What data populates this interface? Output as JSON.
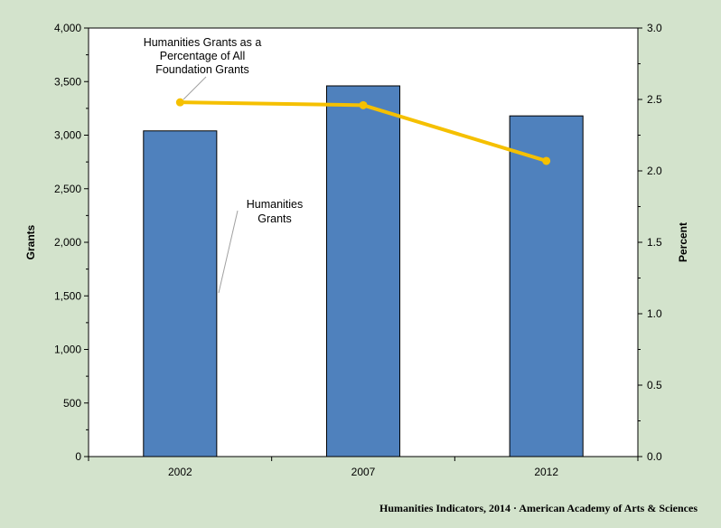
{
  "chart_data": {
    "type": "bar",
    "categories": [
      "2002",
      "2007",
      "2012"
    ],
    "series": [
      {
        "name": "Humanities Grants",
        "type": "bar",
        "axis": "left",
        "values": [
          3040,
          3460,
          3180
        ],
        "color": "#4f81bd"
      },
      {
        "name": "Humanities Grants as a Percentage of All Foundation Grants",
        "type": "line",
        "axis": "right",
        "values": [
          2.48,
          2.46,
          2.07
        ],
        "color": "#f5c000"
      }
    ],
    "ylabel": "Grants",
    "y2label": "Percent",
    "ylim": [
      0,
      4000
    ],
    "y2lim": [
      0,
      3.0
    ],
    "yticks": [
      "0",
      "500",
      "1,000",
      "1,500",
      "2,000",
      "2,500",
      "3,000",
      "3,500",
      "4,000"
    ],
    "y2ticks": [
      "0.0",
      "0.5",
      "1.0",
      "1.5",
      "2.0",
      "2.5",
      "3.0"
    ],
    "annotations": {
      "bar_label": [
        "Humanities",
        "Grants"
      ],
      "line_label": [
        "Humanities Grants as a",
        "Percentage of All",
        "Foundation Grants"
      ]
    },
    "credit": "Humanities Indicators, 2014 · American Academy of Arts & Sciences",
    "colors": {
      "background": "#d3e3cc",
      "plot_area": "#ffffff",
      "bar": "#4f81bd",
      "line": "#f5c000"
    }
  }
}
